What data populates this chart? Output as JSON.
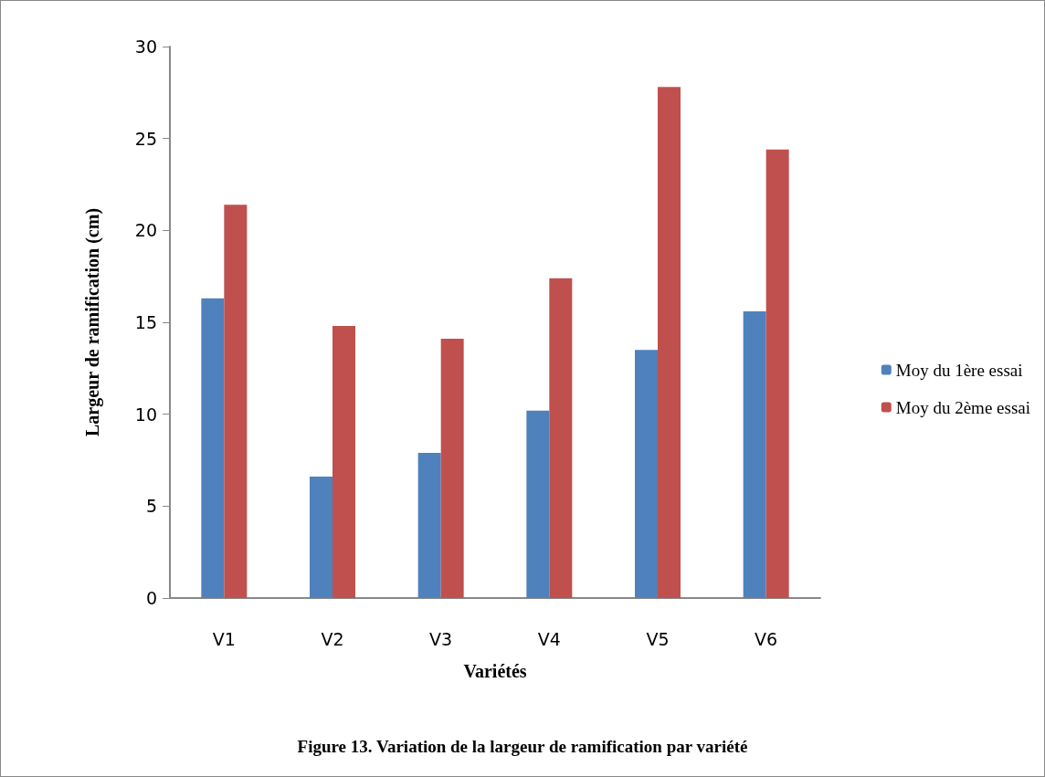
{
  "chart_data": {
    "type": "bar",
    "title": "Figure 13. Variation de la largeur de ramification par variété",
    "xlabel": "Variétés",
    "ylabel": "Largeur de ramification (cm)",
    "categories": [
      "V1",
      "V2",
      "V3",
      "V4",
      "V5",
      "V6"
    ],
    "series": [
      {
        "name": "Moy du 1ère essai",
        "color": "#4f81bd",
        "values": [
          16.3,
          6.6,
          7.9,
          10.2,
          13.5,
          15.6
        ]
      },
      {
        "name": "Moy du 2ème essai",
        "color": "#c0504d",
        "values": [
          21.4,
          14.8,
          14.1,
          17.4,
          27.8,
          24.4
        ]
      }
    ],
    "ylim": [
      0,
      30
    ],
    "yticks": [
      0,
      5,
      10,
      15,
      20,
      25,
      30
    ],
    "grid": false,
    "legend": "right"
  }
}
